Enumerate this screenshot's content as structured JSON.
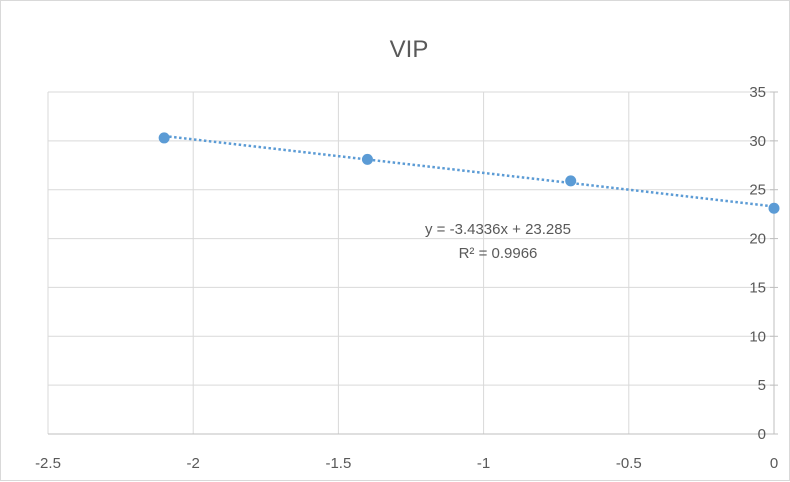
{
  "chart_data": {
    "type": "scatter",
    "title": "VIP",
    "xlabel": "",
    "ylabel": "",
    "xlim": [
      -2.5,
      0
    ],
    "ylim": [
      0,
      35
    ],
    "x_ticks": [
      -2.5,
      -2,
      -1.5,
      -1,
      -0.5,
      0
    ],
    "x_tick_labels": [
      "-2.5",
      "-2",
      "-1.5",
      "-1",
      "-0.5",
      "0"
    ],
    "y_ticks": [
      0,
      5,
      10,
      15,
      20,
      25,
      30,
      35
    ],
    "y_tick_labels": [
      "0",
      "5",
      "10",
      "15",
      "20",
      "25",
      "30",
      "35"
    ],
    "y_axis_side": "right",
    "grid": true,
    "series": [
      {
        "x": [
          -2.1,
          -1.4,
          -0.7,
          0
        ],
        "y": [
          30.3,
          28.1,
          25.9,
          23.1
        ],
        "color": "#5b9bd5"
      }
    ],
    "trendline": {
      "type": "linear",
      "slope": -3.4336,
      "intercept": 23.285,
      "style": "dotted",
      "color": "#5b9bd5",
      "equation": "y = -3.4336x + 23.285",
      "r_squared": "R² = 0.9966"
    },
    "colors": {
      "gridline": "#d9d9d9",
      "text": "#595959",
      "frame": "#d9d9d9"
    }
  }
}
